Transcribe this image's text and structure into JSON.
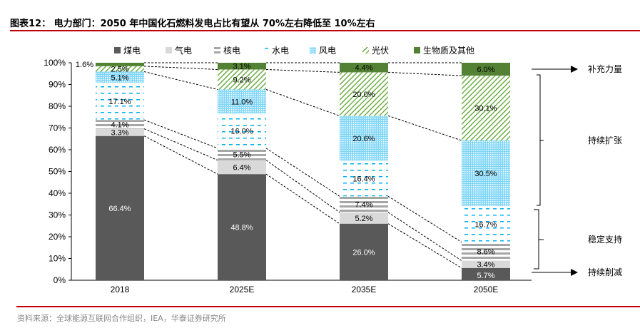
{
  "title": "图表12：  电力部门：2050 年中国化石燃料发电占比有望从 70%左右降低至 10%左右",
  "source": "资料来源：全球能源互联网合作组织，IEA，华泰证券研究所",
  "annotations": [
    "补充力量",
    "持续扩张",
    "稳定支持",
    "持续削减"
  ],
  "colors": {
    "coal": "#595959",
    "gas": "#d9d9d9",
    "nuclear": "#a6a6a6",
    "hydro": "#00b0f0",
    "wind": "#00b0f0",
    "solar": "#70ad47",
    "bio": "#548235",
    "accent": "#c00000"
  },
  "chart_data": {
    "type": "bar",
    "stacked": true,
    "categories": [
      "2018",
      "2025E",
      "2035E",
      "2050E"
    ],
    "ylim": [
      0,
      100
    ],
    "yticks": [
      "0%",
      "10%",
      "20%",
      "30%",
      "40%",
      "50%",
      "60%",
      "70%",
      "80%",
      "90%",
      "100%"
    ],
    "legend_position": "top",
    "series": [
      {
        "name": "煤电",
        "values": [
          66.4,
          48.8,
          26.0,
          5.7
        ]
      },
      {
        "name": "气电",
        "values": [
          3.3,
          6.4,
          5.2,
          3.4
        ]
      },
      {
        "name": "核电",
        "values": [
          4.1,
          5.5,
          7.4,
          8.6
        ]
      },
      {
        "name": "水电",
        "values": [
          17.1,
          16.0,
          16.4,
          16.7
        ]
      },
      {
        "name": "风电",
        "values": [
          5.1,
          11.0,
          20.6,
          30.5
        ]
      },
      {
        "name": "光伏",
        "values": [
          2.5,
          9.2,
          20.0,
          30.1
        ]
      },
      {
        "name": "生物质及其他",
        "values": [
          1.6,
          3.1,
          4.4,
          6.0
        ]
      }
    ],
    "data_labels": [
      [
        "66.4%",
        "48.8%",
        "26.0%",
        "5.7%"
      ],
      [
        "3.3%",
        "6.4%",
        "5.2%",
        "3.4%"
      ],
      [
        "4.1%",
        "5.5%",
        "7.4%",
        "8.6%"
      ],
      [
        "17.1%",
        "16.0%",
        "16.4%",
        "16.7%"
      ],
      [
        "5.1%",
        "11.0%",
        "20.6%",
        "30.5%"
      ],
      [
        "2.5%",
        "9.2%",
        "20.0%",
        "30.1%"
      ],
      [
        "1.6%",
        "3.1%",
        "4.4%",
        "6.0%"
      ]
    ]
  }
}
